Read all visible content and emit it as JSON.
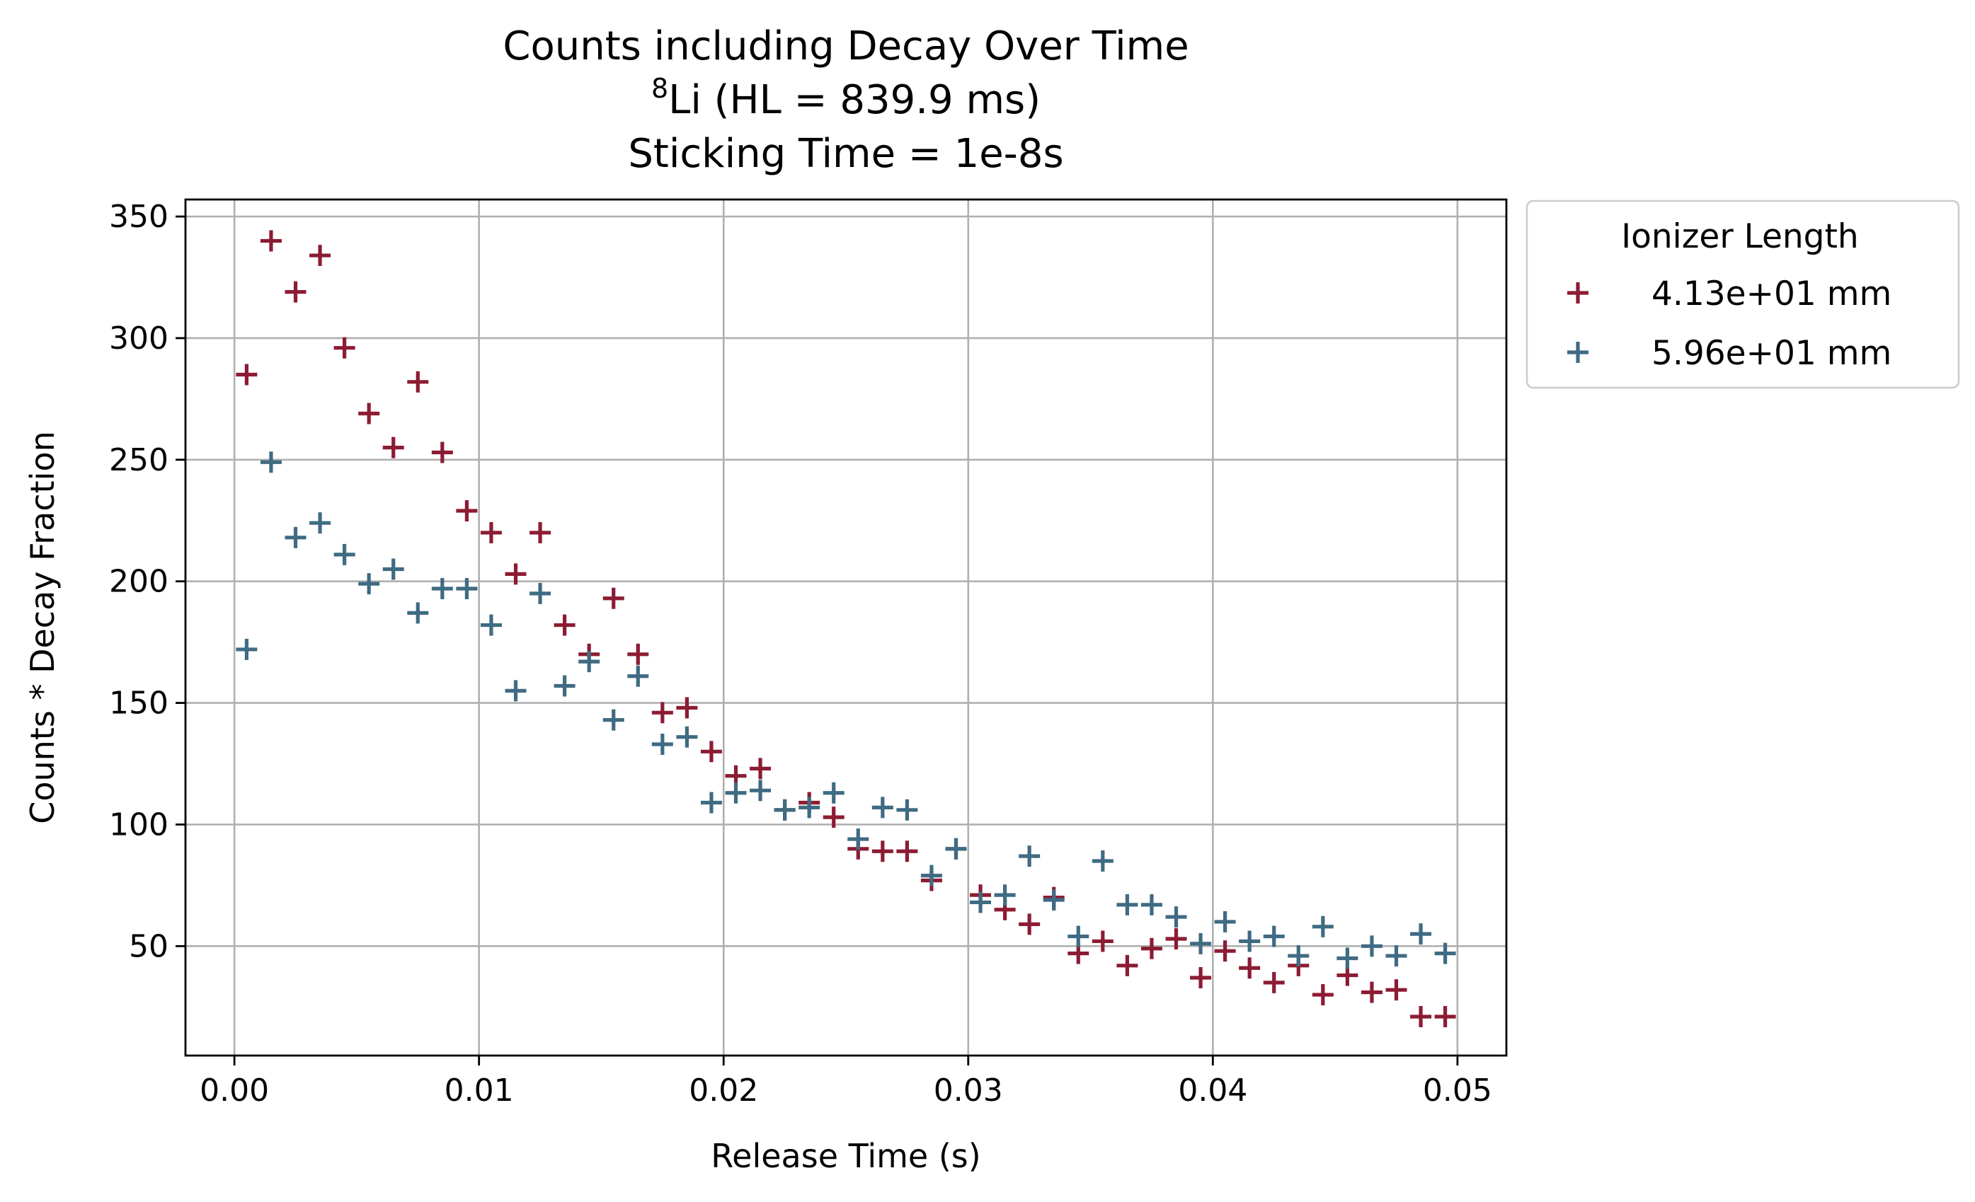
{
  "chart_data": {
    "type": "scatter",
    "title_lines": [
      "Counts including Decay Over Time",
      {
        "sup": "8",
        "text": "Li (HL = 839.9 ms)"
      },
      "Sticking Time = 1e-8s"
    ],
    "xlabel": "Release Time (s)",
    "ylabel": "Counts * Decay Fraction",
    "xlim": [
      -0.002,
      0.052
    ],
    "ylim": [
      5,
      357
    ],
    "x_ticks": [
      0.0,
      0.01,
      0.02,
      0.03,
      0.04,
      0.05
    ],
    "x_tick_labels": [
      "0.00",
      "0.01",
      "0.02",
      "0.03",
      "0.04",
      "0.05"
    ],
    "y_ticks": [
      50,
      100,
      150,
      200,
      250,
      300,
      350
    ],
    "y_tick_labels": [
      "50",
      "100",
      "150",
      "200",
      "250",
      "300",
      "350"
    ],
    "grid": true,
    "marker": "+",
    "legend": {
      "title": "Ionizer Length",
      "placement": "outside-upper-right"
    },
    "series": [
      {
        "name": "4.13e+01 mm",
        "color": "#8c1c33",
        "x": [
          0.0005,
          0.0015,
          0.0025,
          0.0035,
          0.0045,
          0.0055,
          0.0065,
          0.0075,
          0.0085,
          0.0095,
          0.0105,
          0.0115,
          0.0125,
          0.0135,
          0.0145,
          0.0155,
          0.0165,
          0.0175,
          0.0185,
          0.0195,
          0.0205,
          0.0215,
          0.0225,
          0.0235,
          0.0245,
          0.0255,
          0.0265,
          0.0275,
          0.0285,
          0.0295,
          0.0305,
          0.0315,
          0.0325,
          0.0335,
          0.0345,
          0.0355,
          0.0365,
          0.0375,
          0.0385,
          0.0395,
          0.0405,
          0.0415,
          0.0425,
          0.0435,
          0.0445,
          0.0455,
          0.0465,
          0.0475,
          0.0485,
          0.0495
        ],
        "y": [
          285,
          340,
          319,
          334,
          296,
          269,
          255,
          282,
          253,
          229,
          220,
          203,
          220,
          182,
          170,
          193,
          170,
          146,
          148,
          130,
          120,
          123,
          106,
          109,
          103,
          90,
          89,
          89,
          77,
          90,
          71,
          65,
          59,
          70,
          47,
          52,
          42,
          49,
          53,
          37,
          48,
          41,
          35,
          42,
          30,
          38,
          31,
          32,
          21,
          21
        ]
      },
      {
        "name": "5.96e+01 mm",
        "color": "#3f6b83",
        "x": [
          0.0005,
          0.0015,
          0.0025,
          0.0035,
          0.0045,
          0.0055,
          0.0065,
          0.0075,
          0.0085,
          0.0095,
          0.0105,
          0.0115,
          0.0125,
          0.0135,
          0.0145,
          0.0155,
          0.0165,
          0.0175,
          0.0185,
          0.0195,
          0.0205,
          0.0215,
          0.0225,
          0.0235,
          0.0245,
          0.0255,
          0.0265,
          0.0275,
          0.0285,
          0.0295,
          0.0305,
          0.0315,
          0.0325,
          0.0335,
          0.0345,
          0.0355,
          0.0365,
          0.0375,
          0.0385,
          0.0395,
          0.0405,
          0.0415,
          0.0425,
          0.0435,
          0.0445,
          0.0455,
          0.0465,
          0.0475,
          0.0485,
          0.0495
        ],
        "y": [
          172,
          249,
          218,
          224,
          211,
          199,
          205,
          187,
          197,
          197,
          182,
          155,
          195,
          157,
          167,
          143,
          161,
          133,
          136,
          109,
          113,
          114,
          106,
          107,
          113,
          94,
          107,
          106,
          79,
          90,
          68,
          71,
          87,
          69,
          54,
          85,
          67,
          67,
          62,
          51,
          60,
          52,
          54,
          46,
          58,
          45,
          50,
          46,
          55,
          47
        ]
      }
    ]
  }
}
